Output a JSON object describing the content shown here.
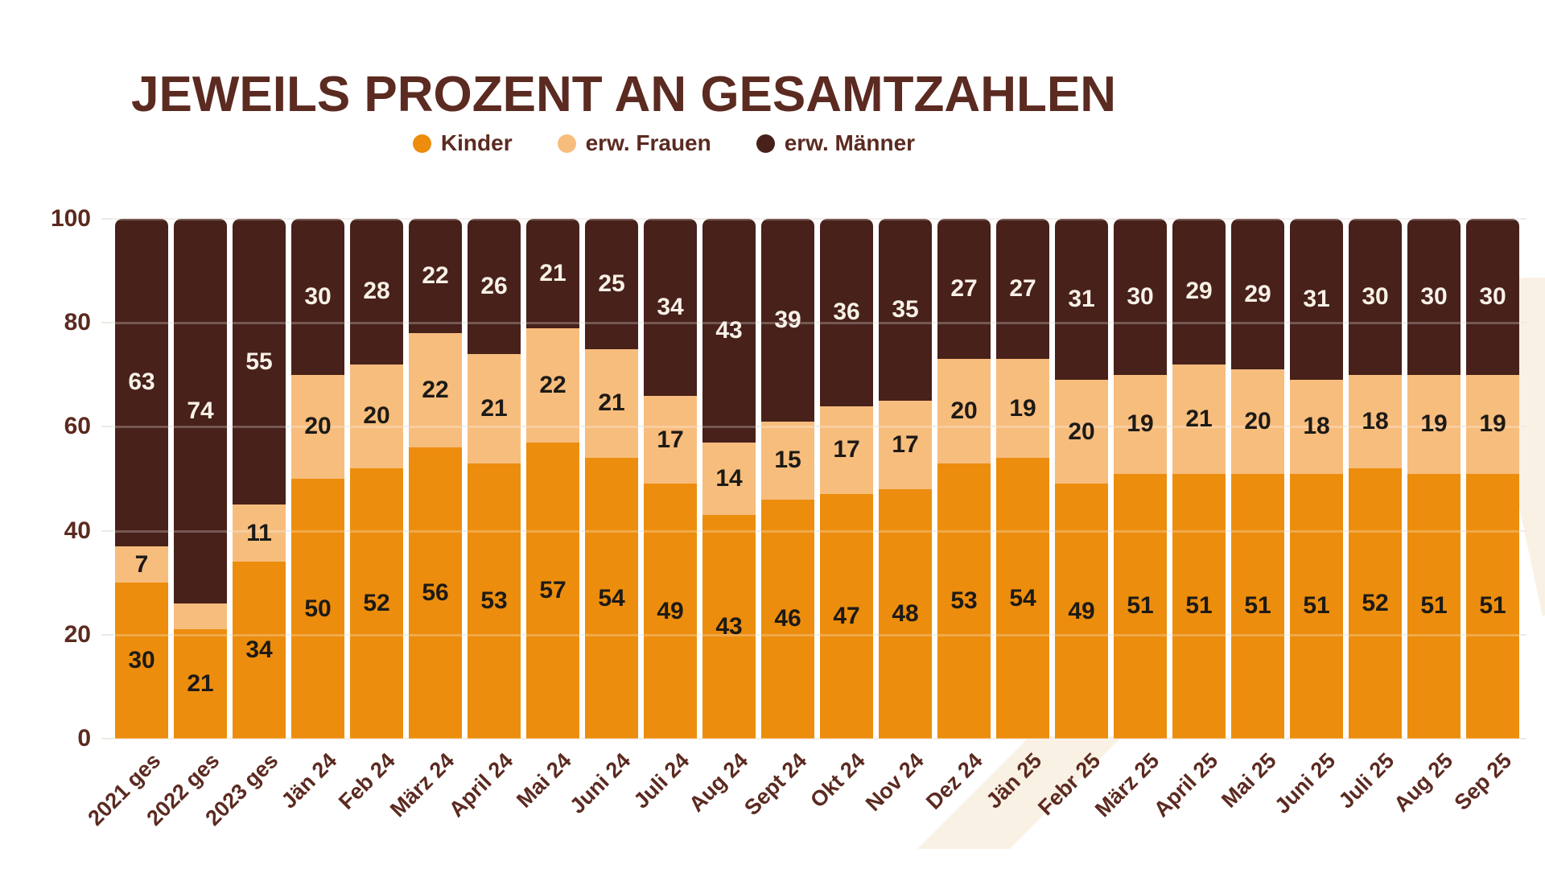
{
  "title": "JEWEILS PROZENT AN GESAMTZAHLEN",
  "chart_data": {
    "type": "bar",
    "stacked": true,
    "title": "JEWEILS PROZENT AN GESAMTZAHLEN",
    "categories": [
      "2021 ges",
      "2022 ges",
      "2023 ges",
      "Jän 24",
      "Feb 24",
      "März 24",
      "April 24",
      "Mai 24",
      "Juni 24",
      "Juli 24",
      "Aug 24",
      "Sept 24",
      "Okt 24",
      "Nov 24",
      "Dez 24",
      "Jän 25",
      "Febr 25",
      "März 25",
      "April 25",
      "Mai 25",
      "Juni 25",
      "Juli 25",
      "Aug 25",
      "Sep 25"
    ],
    "series": [
      {
        "name": "Kinder",
        "color": "#EC8D0D",
        "label_color": "#1D1A16",
        "values": [
          30,
          21,
          34,
          50,
          52,
          56,
          53,
          57,
          54,
          49,
          43,
          46,
          47,
          48,
          53,
          54,
          49,
          51,
          51,
          51,
          51,
          52,
          51,
          51
        ]
      },
      {
        "name": "erw. Frauen",
        "color": "#F7BD7D",
        "label_color": "#1D1A16",
        "values": [
          7,
          5,
          11,
          20,
          20,
          22,
          21,
          22,
          21,
          17,
          14,
          15,
          17,
          17,
          20,
          19,
          20,
          19,
          21,
          20,
          18,
          18,
          19,
          19
        ]
      },
      {
        "name": "erw. Männer",
        "color": "#47211A",
        "label_color": "#F8F1E7",
        "values": [
          63,
          74,
          55,
          30,
          28,
          22,
          26,
          21,
          25,
          34,
          43,
          39,
          36,
          35,
          27,
          27,
          31,
          30,
          29,
          29,
          31,
          30,
          30,
          30
        ]
      }
    ],
    "hidden_value_labels": [
      {
        "series": 1,
        "category": 1
      }
    ],
    "ylim": [
      0,
      100
    ],
    "yticks": [
      0,
      20,
      40,
      60,
      80,
      100
    ],
    "grid": true,
    "legend_position": "top"
  },
  "colors": {
    "text": "#5B2A20",
    "background": "#FFFFFF",
    "gridline": "#EFEAE3",
    "gridline_overlay": "rgba(255,255,255,0.25)",
    "watermark": "#FAF1E5"
  }
}
